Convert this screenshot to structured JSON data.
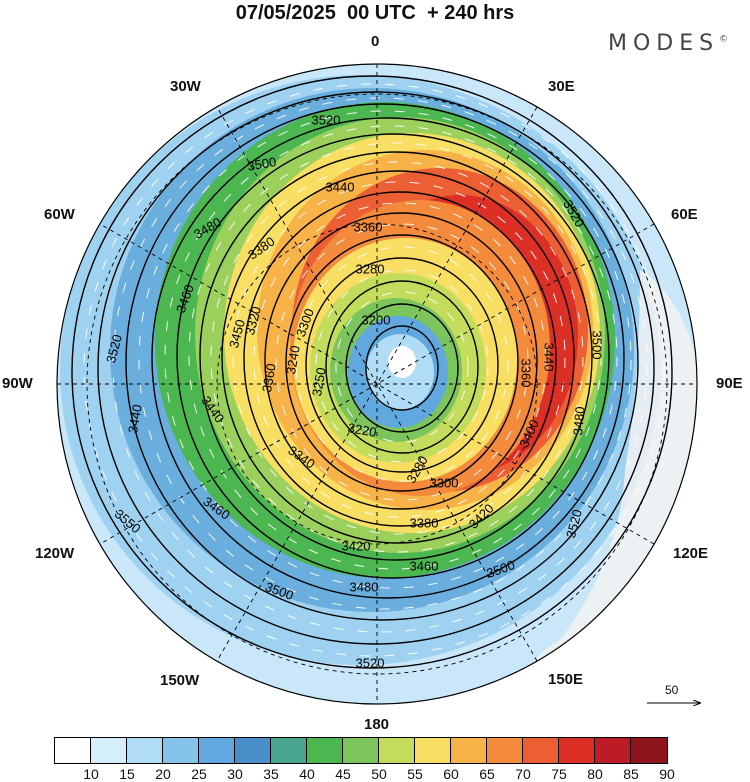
{
  "title": "07/05/2025  00 UTC  + 240 hrs",
  "brand": "MODES",
  "brand_mark": "©",
  "longitude_labels": {
    "n0": "0",
    "e30": "30E",
    "e60": "60E",
    "e90": "90E",
    "e120": "120E",
    "e150": "150E",
    "s180": "180",
    "w150": "150W",
    "w120": "120W",
    "w90": "90W",
    "w60": "60W",
    "w30": "30W"
  },
  "vector_reference": "50",
  "colorbar": {
    "colors": [
      "#ffffff",
      "#d4eefb",
      "#b0dcf5",
      "#86c3eb",
      "#60a8dd",
      "#4a8fc9",
      "#4aa58f",
      "#4cb651",
      "#7cc55d",
      "#c4dc5c",
      "#f8de62",
      "#f7b248",
      "#f38a3c",
      "#ec5e33",
      "#dc3027",
      "#bb1c25",
      "#8f141c"
    ],
    "ticks": [
      "10",
      "15",
      "20",
      "25",
      "30",
      "35",
      "40",
      "45",
      "50",
      "55",
      "60",
      "65",
      "70",
      "75",
      "80",
      "85",
      "90"
    ]
  },
  "contour_labels": [
    "3520",
    "3500",
    "3440",
    "3480",
    "3360",
    "3520",
    "3280",
    "3380",
    "3460",
    "3500",
    "3200",
    "3520",
    "3300",
    "3320",
    "3440",
    "3360",
    "3240",
    "3450",
    "3360",
    "3250",
    "3220",
    "3280",
    "3400",
    "3480",
    "3440",
    "3550",
    "3340",
    "3300",
    "3380",
    "3420",
    "3440",
    "3460",
    "3420",
    "3520",
    "3480",
    "3460",
    "3500",
    "3500",
    "3520"
  ]
}
